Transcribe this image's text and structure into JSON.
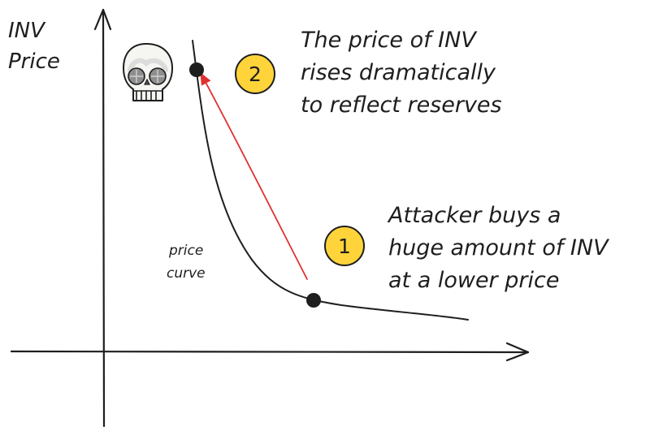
{
  "y_axis_label": [
    "INV",
    "Price"
  ],
  "curve_label": [
    "price",
    "curve"
  ],
  "steps": [
    {
      "number": "1",
      "text": [
        "Attacker buys a",
        "huge amount of INV",
        "at a lower price"
      ]
    },
    {
      "number": "2",
      "text": [
        "The price of INV",
        "rises dramatically",
        "to reflect reserves"
      ]
    }
  ],
  "icons": {
    "skull": "skull-icon"
  },
  "colors": {
    "ink": "#1e1e1e",
    "arrow": "#e03131",
    "badge_fill": "#ffd43b",
    "background": "#ffffff"
  }
}
